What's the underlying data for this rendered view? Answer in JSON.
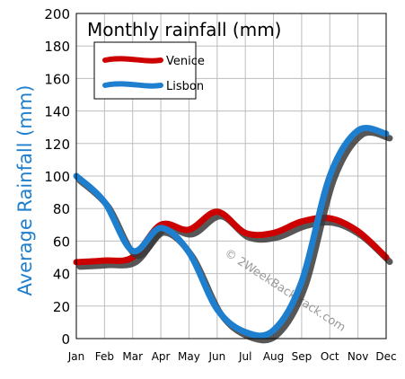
{
  "chart_data": {
    "type": "line",
    "title": "Monthly rainfall (mm)",
    "ylabel": "Average Rainfall (mm)",
    "xlabel": "",
    "categories": [
      "Jan",
      "Feb",
      "Mar",
      "Apr",
      "May",
      "Jun",
      "Jul",
      "Aug",
      "Sep",
      "Oct",
      "Nov",
      "Dec"
    ],
    "ylim": [
      0,
      200
    ],
    "yticks": [
      0,
      20,
      40,
      60,
      80,
      100,
      120,
      140,
      160,
      180,
      200
    ],
    "grid": true,
    "legend_position": "top-left",
    "series": [
      {
        "name": "Venice",
        "color": "#cc0000",
        "values": [
          47,
          48,
          50,
          70,
          67,
          78,
          65,
          65,
          72,
          74,
          66,
          50
        ]
      },
      {
        "name": "Lisbon",
        "color": "#1f7fcf",
        "values": [
          100,
          84,
          54,
          68,
          53,
          18,
          4,
          5,
          35,
          100,
          128,
          126
        ]
      }
    ],
    "watermark": "© 2WeekBacktrack.com"
  }
}
